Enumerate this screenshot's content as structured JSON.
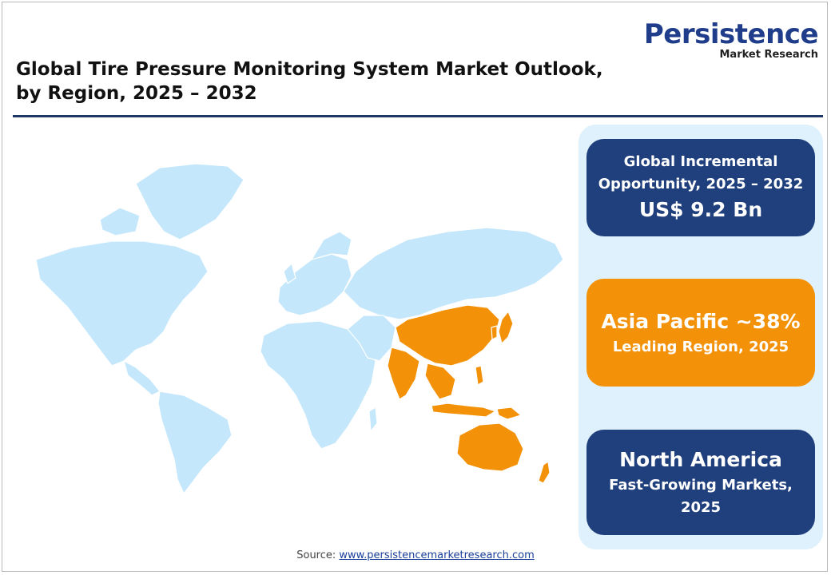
{
  "logo": {
    "line1_a": "Persistence",
    "line2": "Market Research"
  },
  "title": "Global Tire Pressure Monitoring System Market Outlook,\nby Region, 2025 – 2032",
  "colors": {
    "map_base": "#c4e7fb",
    "map_highlight": "#f39208",
    "panel_bg": "#dff1fc",
    "card_navy": "#1f3f7d",
    "card_orange": "#f39208",
    "rule": "#1f3868"
  },
  "map": {
    "highlighted_region": "Asia Pacific"
  },
  "cards": [
    {
      "line1": "Global Incremental",
      "line2": "Opportunity, 2025 – 2032",
      "value": "US$ 9.2 Bn"
    },
    {
      "headline": "Asia Pacific ~38%",
      "sub": "Leading Region, 2025"
    },
    {
      "headline": "North America",
      "sub1": "Fast-Growing Markets,",
      "sub2": "2025"
    }
  ],
  "source": {
    "label": "Source:",
    "link": "www.persistencemarketresearch.com"
  }
}
